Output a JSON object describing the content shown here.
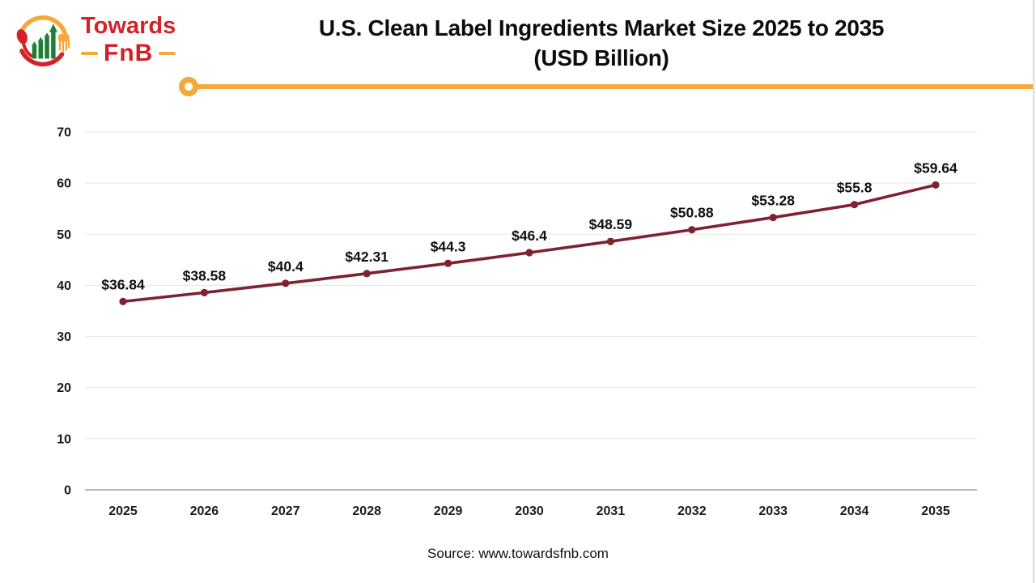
{
  "logo": {
    "brand_top": "Towards",
    "brand_bottom": "FnB"
  },
  "header": {
    "title_line1": "U.S. Clean Label Ingredients Market Size 2025 to 2035",
    "title_line2": "(USD Billion)"
  },
  "chart_data": {
    "type": "line",
    "title": "U.S. Clean Label Ingredients Market Size 2025 to 2035 (USD Billion)",
    "x": [
      "2025",
      "2026",
      "2027",
      "2028",
      "2029",
      "2030",
      "2031",
      "2032",
      "2033",
      "2034",
      "2035"
    ],
    "series": [
      {
        "name": "U.S. Clean Label Ingredients Market Size (USD Billion)",
        "values": [
          36.84,
          38.58,
          40.4,
          42.31,
          44.3,
          46.4,
          48.59,
          50.88,
          53.28,
          55.8,
          59.64
        ]
      }
    ],
    "point_labels": [
      "$36.84",
      "$38.58",
      "$40.4",
      "$42.31",
      "$44.3",
      "$46.4",
      "$48.59",
      "$50.88",
      "$53.28",
      "$55.8",
      "$59.64"
    ],
    "ylim": [
      0,
      70
    ],
    "yticks": [
      0,
      10,
      20,
      30,
      40,
      50,
      60,
      70
    ],
    "grid": true,
    "legend": "none",
    "colors": {
      "line": "#7e2231",
      "marker": "#7e2231",
      "grid": "#e9e9e9",
      "axis": "#a6a6a6",
      "tick_text": "#1a1a1a"
    }
  },
  "footer": {
    "source": "Source: www.towardsfnb.com"
  },
  "theme": {
    "accent_yellow": "#f3a93b",
    "accent_red": "#d2232a",
    "accent_green": "#1e7e34"
  }
}
